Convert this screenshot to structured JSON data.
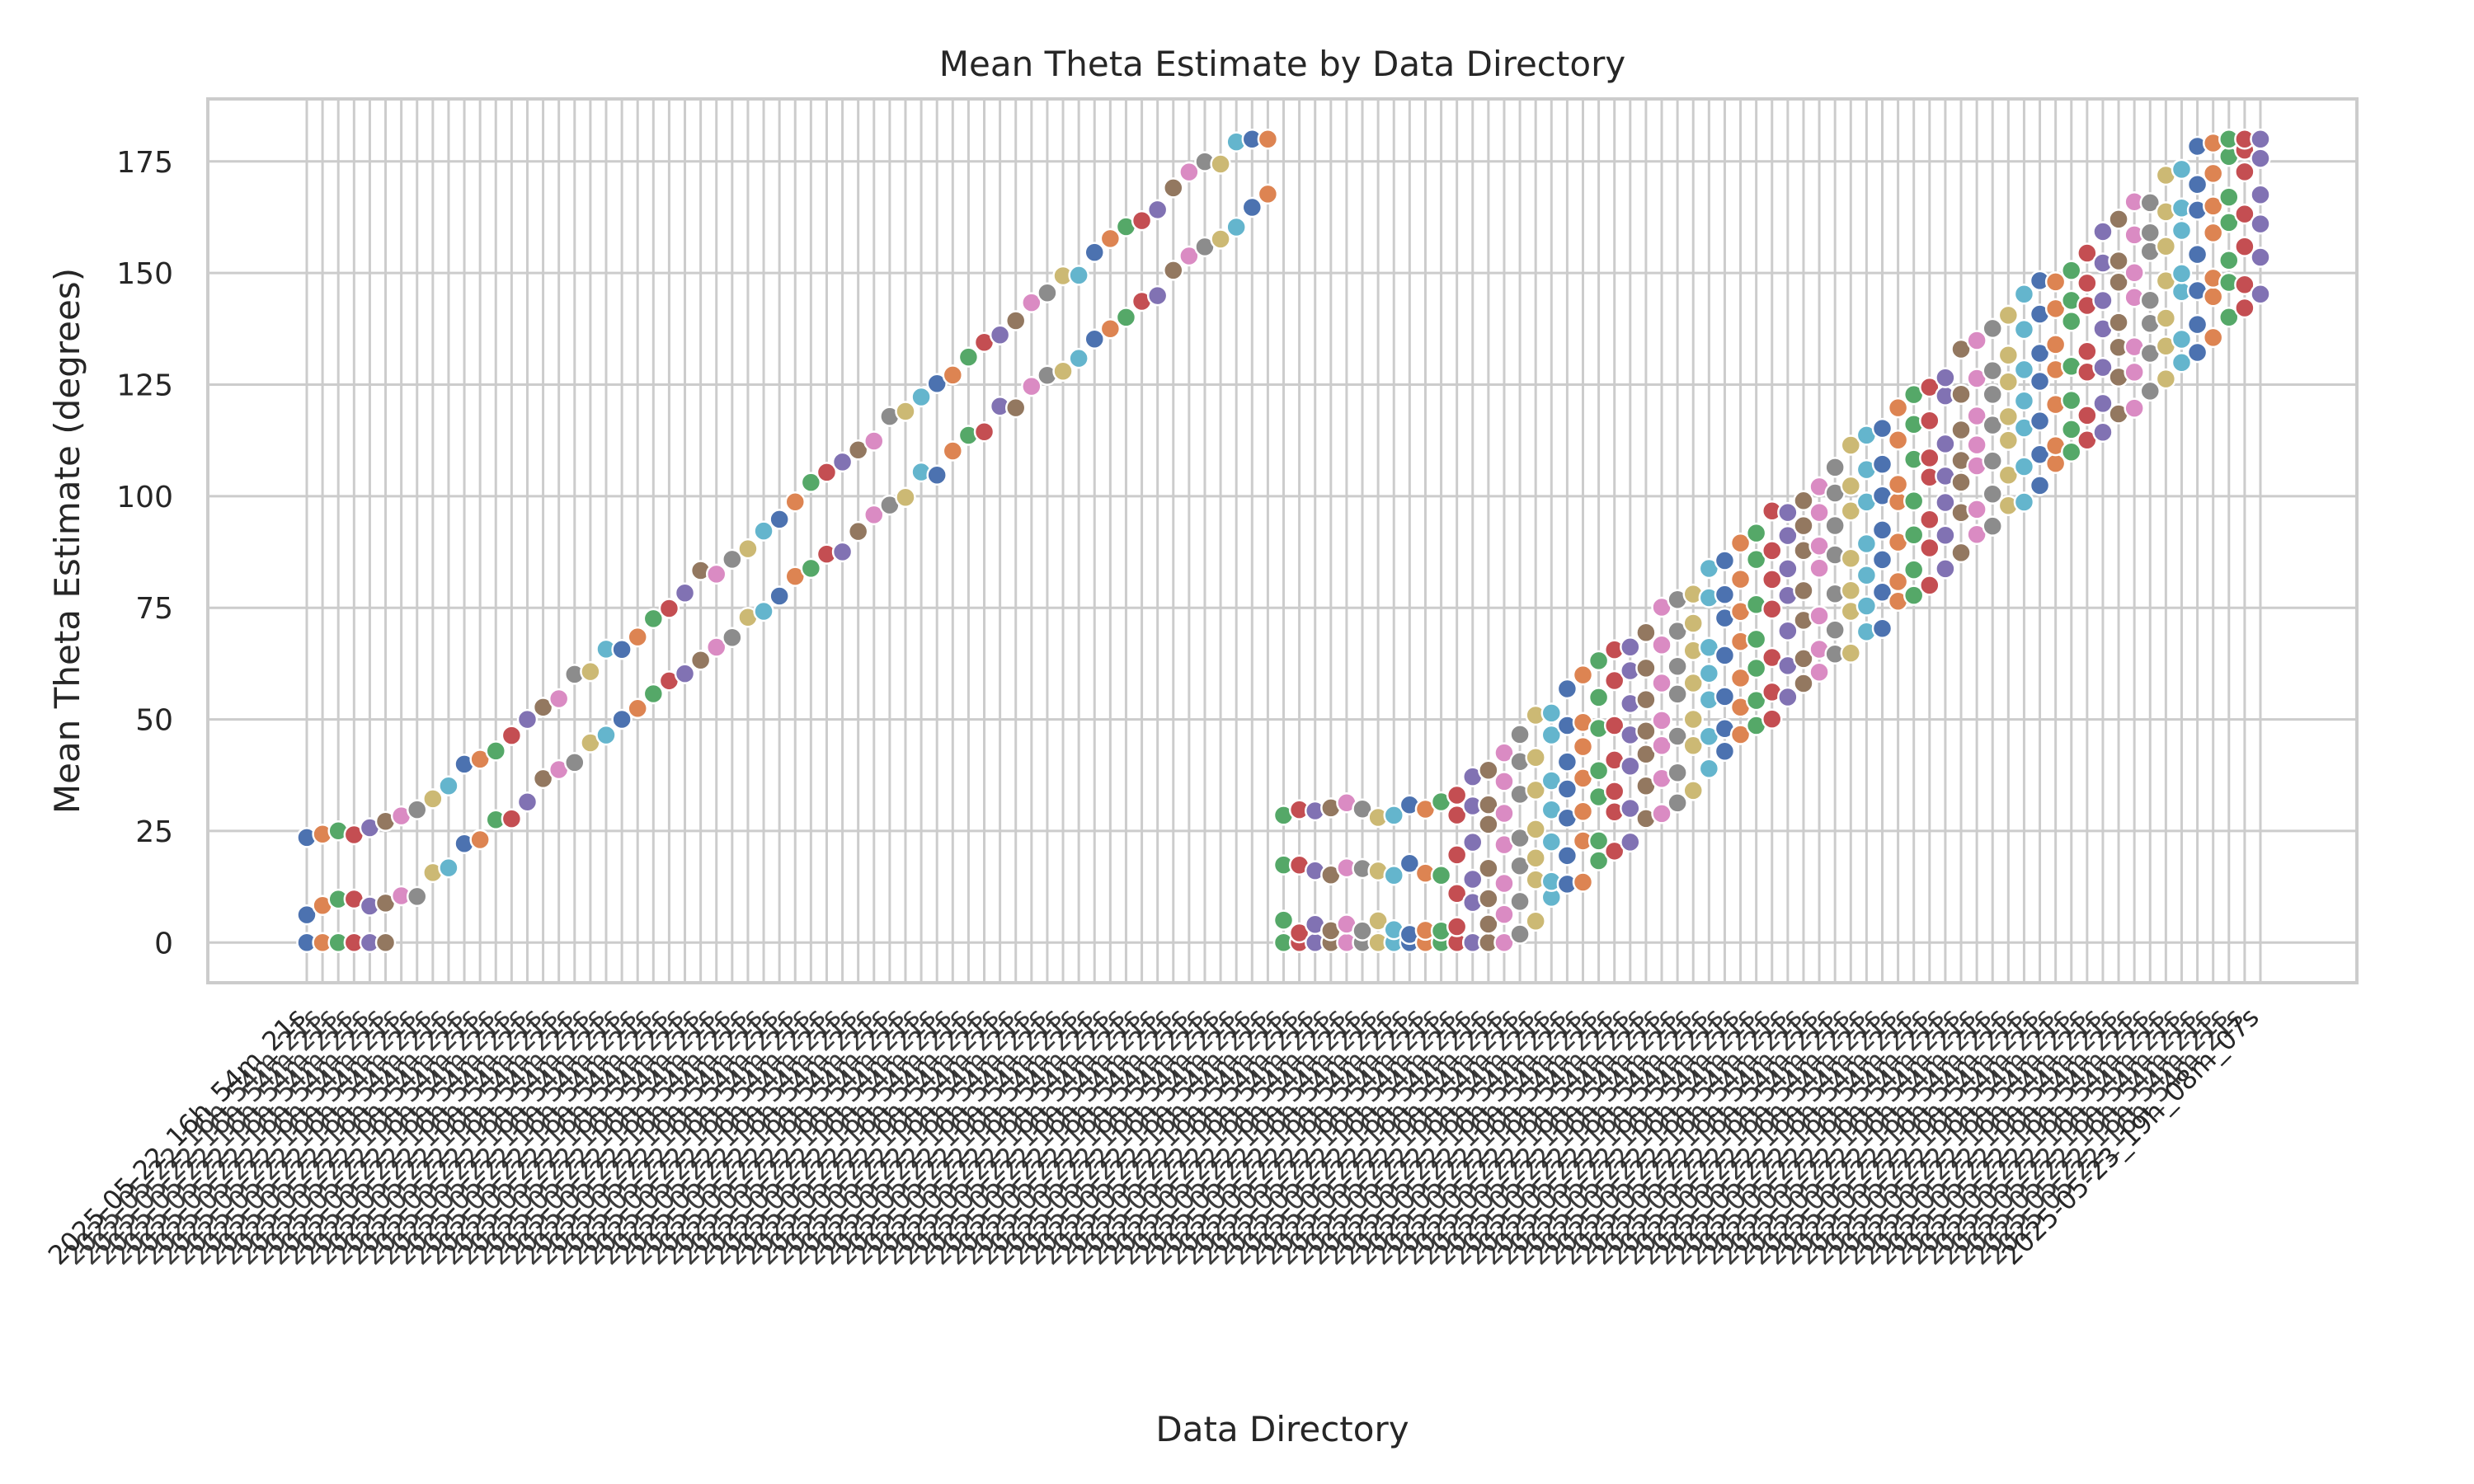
{
  "chart_data": {
    "type": "scatter",
    "title": "Mean Theta Estimate by Data Directory",
    "xlabel": "Data Directory",
    "ylabel": "Mean Theta Estimate (degrees)",
    "ylim": [
      -9,
      189
    ],
    "yticks": [
      0,
      25,
      50,
      75,
      100,
      125,
      150,
      175
    ],
    "grid": true,
    "legend": "none",
    "x_tick_labels": {
      "first": "2025-05-22_16h_54m_21s",
      "last": "2025-05-23_19h_08m_07s"
    },
    "palette": [
      "#4c72b0",
      "#dd8452",
      "#55a868",
      "#c44e52",
      "#8172b3",
      "#937860",
      "#da8bc3",
      "#8c8c8c",
      "#ccb974",
      "#64b5cd"
    ],
    "categories_count": 125,
    "segments": [
      {
        "start": 0,
        "count": 6,
        "y0": 7,
        "y1": 10,
        "spread": 16,
        "pts": 3
      },
      {
        "start": 6,
        "count": 56,
        "y0": 18,
        "y1": 176,
        "spread": 9,
        "pts": 2
      },
      {
        "start": 62,
        "count": 11,
        "y0": 10,
        "y1": 10,
        "spread": 20,
        "pts": 4
      },
      {
        "start": 73,
        "count": 52,
        "y0": 12,
        "y1": 167,
        "spread": 22,
        "pts": 7
      }
    ]
  }
}
